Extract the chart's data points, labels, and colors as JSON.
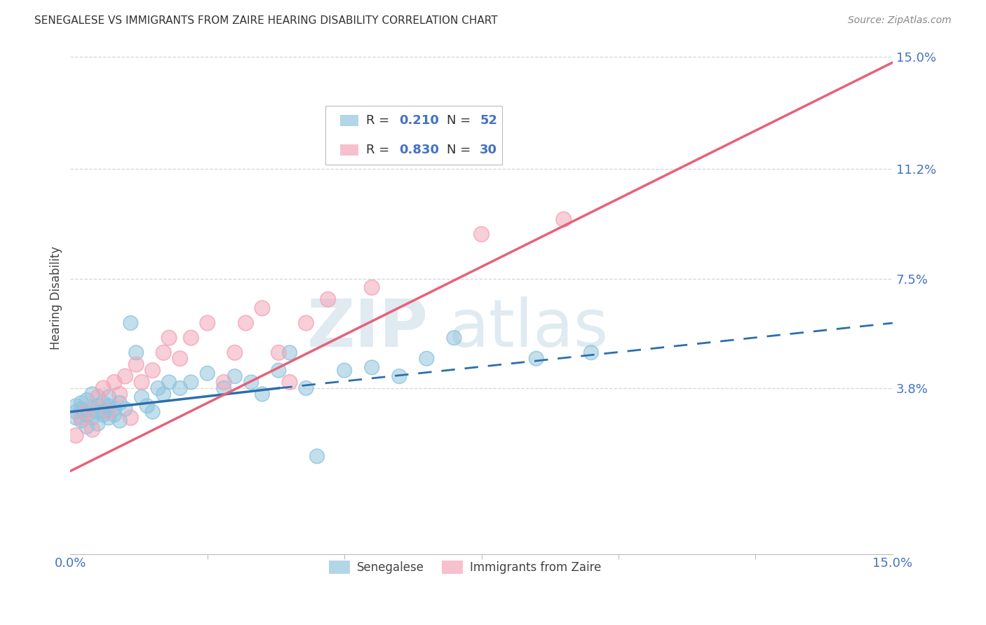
{
  "title": "SENEGALESE VS IMMIGRANTS FROM ZAIRE HEARING DISABILITY CORRELATION CHART",
  "source": "Source: ZipAtlas.com",
  "ylabel": "Hearing Disability",
  "ytick_labels": [
    "15.0%",
    "11.2%",
    "7.5%",
    "3.8%"
  ],
  "ytick_values": [
    0.15,
    0.112,
    0.075,
    0.038
  ],
  "xtick_labels": [
    "0.0%",
    "15.0%"
  ],
  "xtick_values": [
    0.0,
    0.15
  ],
  "xmin": 0.0,
  "xmax": 0.15,
  "ymin": -0.018,
  "ymax": 0.155,
  "blue_color": "#92c5de",
  "pink_color": "#f4a6b8",
  "blue_line_color": "#2c6fad",
  "pink_line_color": "#e8607a",
  "watermark_zip": "ZIP",
  "watermark_atlas": "atlas",
  "background_color": "#ffffff",
  "grid_color": "#cccccc",
  "senegalese_x": [
    0.001,
    0.001,
    0.001,
    0.002,
    0.002,
    0.002,
    0.003,
    0.003,
    0.003,
    0.004,
    0.004,
    0.004,
    0.005,
    0.005,
    0.005,
    0.006,
    0.006,
    0.006,
    0.007,
    0.007,
    0.007,
    0.008,
    0.008,
    0.009,
    0.009,
    0.01,
    0.011,
    0.012,
    0.013,
    0.014,
    0.015,
    0.016,
    0.017,
    0.018,
    0.02,
    0.022,
    0.025,
    0.028,
    0.03,
    0.033,
    0.035,
    0.038,
    0.04,
    0.043,
    0.045,
    0.05,
    0.055,
    0.06,
    0.065,
    0.07,
    0.085,
    0.095
  ],
  "senegalese_y": [
    0.03,
    0.032,
    0.028,
    0.031,
    0.033,
    0.027,
    0.029,
    0.034,
    0.025,
    0.031,
    0.036,
    0.028,
    0.03,
    0.032,
    0.026,
    0.029,
    0.033,
    0.03,
    0.032,
    0.028,
    0.035,
    0.031,
    0.029,
    0.033,
    0.027,
    0.031,
    0.06,
    0.05,
    0.035,
    0.032,
    0.03,
    0.038,
    0.036,
    0.04,
    0.038,
    0.04,
    0.043,
    0.038,
    0.042,
    0.04,
    0.036,
    0.044,
    0.05,
    0.038,
    0.015,
    0.044,
    0.045,
    0.042,
    0.048,
    0.055,
    0.048,
    0.05
  ],
  "zaire_x": [
    0.001,
    0.002,
    0.003,
    0.004,
    0.005,
    0.006,
    0.007,
    0.008,
    0.009,
    0.01,
    0.011,
    0.012,
    0.013,
    0.015,
    0.017,
    0.018,
    0.02,
    0.022,
    0.025,
    0.028,
    0.03,
    0.032,
    0.035,
    0.038,
    0.04,
    0.043,
    0.047,
    0.055,
    0.075,
    0.09
  ],
  "zaire_y": [
    0.022,
    0.028,
    0.03,
    0.024,
    0.035,
    0.038,
    0.03,
    0.04,
    0.036,
    0.042,
    0.028,
    0.046,
    0.04,
    0.044,
    0.05,
    0.055,
    0.048,
    0.055,
    0.06,
    0.04,
    0.05,
    0.06,
    0.065,
    0.05,
    0.04,
    0.06,
    0.068,
    0.072,
    0.09,
    0.095
  ],
  "blue_line_x0": 0.0,
  "blue_line_x_solid_end": 0.038,
  "blue_line_y0": 0.03,
  "blue_line_y_solid_end": 0.038,
  "blue_line_y_dash_end": 0.06,
  "pink_line_x0": 0.0,
  "pink_line_y0": 0.01,
  "pink_line_x1": 0.15,
  "pink_line_y1": 0.148
}
